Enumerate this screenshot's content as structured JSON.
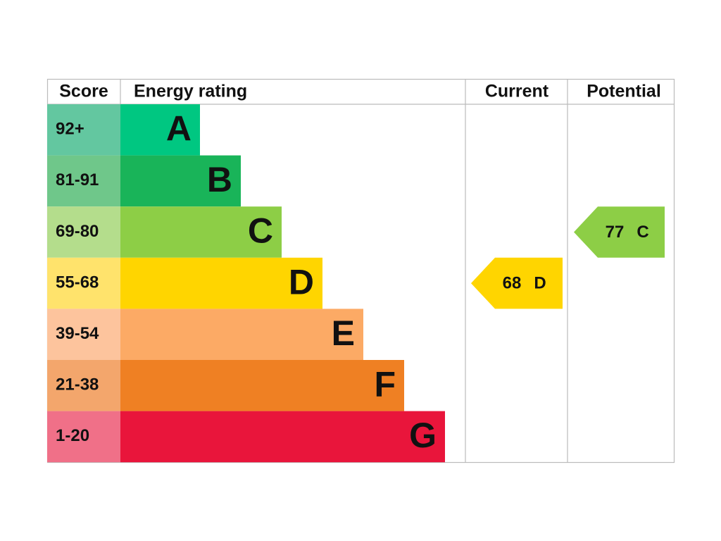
{
  "header": {
    "score": "Score",
    "rating": "Energy rating",
    "current": "Current",
    "potential": "Potential"
  },
  "bands": [
    {
      "score": "92+",
      "letter": "A",
      "color": "#00c781",
      "score_color": "#63c7a0"
    },
    {
      "score": "81-91",
      "letter": "B",
      "color": "#19b459",
      "score_color": "#6fc78a"
    },
    {
      "score": "69-80",
      "letter": "C",
      "color": "#8dce46",
      "score_color": "#b4dd8c"
    },
    {
      "score": "55-68",
      "letter": "D",
      "color": "#ffd500",
      "score_color": "#ffe36c"
    },
    {
      "score": "39-54",
      "letter": "E",
      "color": "#fcaa65",
      "score_color": "#fdc49d"
    },
    {
      "score": "21-38",
      "letter": "F",
      "color": "#ef8023",
      "score_color": "#f3a66c"
    },
    {
      "score": "1-20",
      "letter": "G",
      "color": "#e9153b",
      "score_color": "#f07088"
    }
  ],
  "current": {
    "score": 68,
    "rating": "D"
  },
  "potential": {
    "score": 77,
    "rating": "C"
  }
}
